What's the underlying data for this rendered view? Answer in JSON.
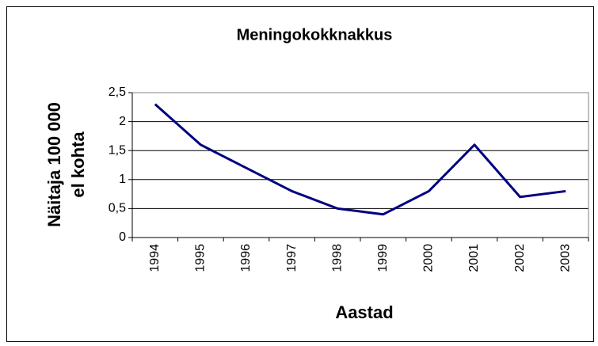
{
  "chart_data": {
    "type": "line",
    "title": "Meningokokknakkus",
    "ylabel": [
      "Näitaja 100 000",
      "el kohta"
    ],
    "xlabel": "Aastad",
    "categories": [
      "1994",
      "1995",
      "1996",
      "1997",
      "1998",
      "1999",
      "2000",
      "2001",
      "2002",
      "2003"
    ],
    "series": [
      {
        "name": "Meningokokknakkus",
        "color": "#000080",
        "values": [
          2.3,
          1.6,
          1.2,
          0.8,
          0.5,
          0.4,
          0.8,
          1.6,
          0.7,
          0.8
        ]
      }
    ],
    "ylim": [
      0,
      2.5
    ],
    "yticks": [
      0,
      {
        "value": 0.5,
        "label": "0,5"
      },
      1,
      {
        "value": 1.5,
        "label": "1,5"
      },
      2,
      {
        "value": 2.5,
        "label": "2,5"
      }
    ],
    "grid": true,
    "legend": false
  }
}
